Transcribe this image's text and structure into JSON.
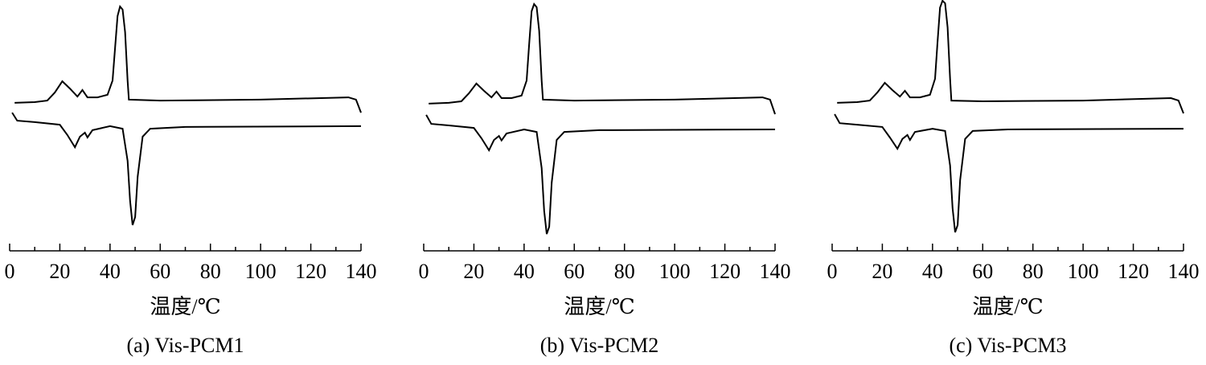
{
  "chart_data": [
    {
      "type": "line",
      "title": "(a) Vis-PCM1",
      "xlabel": "温度/℃",
      "xlim": [
        0,
        140
      ],
      "xticks": [
        0,
        20,
        40,
        60,
        80,
        100,
        120,
        140
      ],
      "xminorticks": [
        10,
        30,
        50,
        70,
        90,
        110,
        130
      ],
      "ylim": [
        0,
        100
      ],
      "series": [
        {
          "color": "#000000",
          "x": [
            2,
            10,
            15,
            18,
            21,
            24,
            27,
            29,
            31,
            35,
            39,
            41,
            42,
            43,
            44,
            45,
            46,
            47,
            47.5,
            60,
            100,
            135,
            138,
            140
          ],
          "values": [
            59.0,
            59.3,
            59.9,
            63.1,
            67.6,
            64.7,
            61.5,
            64.1,
            61.2,
            61.2,
            62.2,
            67.9,
            80.8,
            93.6,
            97.4,
            96.2,
            87.2,
            67.9,
            60.3,
            59.9,
            60.3,
            61.2,
            60.3,
            55.1
          ]
        },
        {
          "color": "#000000",
          "x": [
            1,
            3,
            10,
            20,
            23,
            26,
            28,
            30,
            31,
            33,
            40,
            45,
            47,
            48,
            49,
            50,
            51,
            53,
            56,
            70,
            140
          ],
          "values": [
            55.1,
            51.9,
            51.3,
            50.3,
            46.2,
            41.3,
            45.5,
            47.1,
            45.2,
            48.1,
            49.7,
            48.7,
            35.9,
            19.9,
            10.3,
            13.5,
            29.5,
            45.5,
            48.7,
            49.4,
            49.7
          ]
        }
      ]
    },
    {
      "type": "line",
      "title": "(b) Vis-PCM2",
      "xlabel": "温度/℃",
      "xlim": [
        0,
        140
      ],
      "xticks": [
        0,
        20,
        40,
        60,
        80,
        100,
        120,
        140
      ],
      "xminorticks": [
        10,
        30,
        50,
        70,
        90,
        110,
        130
      ],
      "ylim": [
        0,
        100
      ],
      "series": [
        {
          "color": "#000000",
          "x": [
            2,
            10,
            15,
            18,
            21,
            24,
            27,
            29,
            31,
            35,
            39,
            41,
            42,
            43,
            44,
            45,
            46,
            47,
            47.5,
            60,
            100,
            135,
            138,
            140
          ],
          "values": [
            58.7,
            59.0,
            59.6,
            62.8,
            66.7,
            63.8,
            61.2,
            63.5,
            60.9,
            60.9,
            61.9,
            67.9,
            82.1,
            95.5,
            98.4,
            97.1,
            87.8,
            67.9,
            60.3,
            59.9,
            60.3,
            61.2,
            60.3,
            54.5
          ]
        },
        {
          "color": "#000000",
          "x": [
            1,
            3,
            10,
            20,
            23,
            26,
            28,
            30,
            31,
            33,
            40,
            45,
            47,
            48,
            49,
            50,
            51,
            53,
            56,
            70,
            140
          ],
          "values": [
            54.2,
            50.6,
            50.0,
            49.0,
            44.9,
            40.1,
            44.2,
            45.8,
            44.0,
            46.8,
            48.4,
            47.4,
            33.0,
            16.0,
            6.7,
            9.6,
            27.2,
            44.2,
            47.4,
            48.1,
            48.4
          ]
        }
      ]
    },
    {
      "type": "line",
      "title": "(c) Vis-PCM3",
      "xlabel": "温度/℃",
      "xlim": [
        0,
        140
      ],
      "xticks": [
        0,
        20,
        40,
        60,
        80,
        100,
        120,
        140
      ],
      "xminorticks": [
        10,
        30,
        50,
        70,
        90,
        110,
        130
      ],
      "ylim": [
        0,
        100
      ],
      "series": [
        {
          "color": "#000000",
          "x": [
            2,
            10,
            15,
            18,
            21,
            24,
            27,
            29,
            31,
            35,
            39,
            41,
            42,
            43,
            44,
            45,
            46,
            47,
            47.5,
            60,
            100,
            135,
            138,
            140
          ],
          "values": [
            59.0,
            59.3,
            59.9,
            63.1,
            67.0,
            64.1,
            61.5,
            63.8,
            61.2,
            61.2,
            62.2,
            68.6,
            83.3,
            97.0,
            99.7,
            98.7,
            89.1,
            68.6,
            59.9,
            59.6,
            59.9,
            60.9,
            59.9,
            54.8
          ]
        },
        {
          "color": "#000000",
          "x": [
            1,
            3,
            10,
            20,
            23,
            26,
            28,
            30,
            31,
            33,
            40,
            45,
            47,
            48,
            49,
            50,
            51,
            53,
            56,
            70,
            140
          ],
          "values": [
            54.5,
            50.9,
            50.3,
            49.4,
            45.2,
            40.7,
            44.6,
            46.2,
            44.2,
            47.4,
            48.7,
            47.8,
            34.0,
            17.0,
            7.4,
            10.3,
            28.2,
            44.6,
            47.8,
            48.4,
            48.7
          ]
        }
      ]
    }
  ]
}
